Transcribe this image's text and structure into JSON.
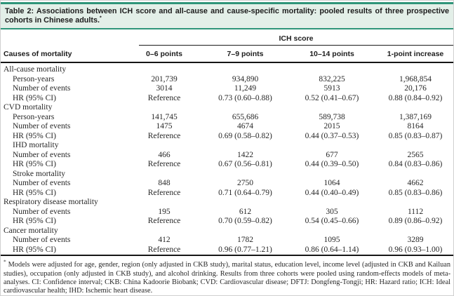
{
  "header": {
    "title": "Table 2: Associations between ICH score and all-cause and cause-specific mortality: pooled results of three prospective cohorts in Chinese adults.",
    "title_sup": "*"
  },
  "table": {
    "spanner_label": "ICH score",
    "row_header": "Causes of mortality",
    "col_headers": [
      "0–6 points",
      "7–9 points",
      "10–14 points",
      "1-point increase"
    ],
    "rows": [
      {
        "label": "All-cause mortality",
        "indent": 0,
        "values": [
          "",
          "",
          "",
          ""
        ]
      },
      {
        "label": "Person-years",
        "indent": 1,
        "values": [
          "201,739",
          "934,890",
          "832,225",
          "1,968,854"
        ]
      },
      {
        "label": "Number of events",
        "indent": 1,
        "values": [
          "3014",
          "11,249",
          "5913",
          "20,176"
        ]
      },
      {
        "label": "HR (95% CI)",
        "indent": 1,
        "values": [
          "Reference",
          "0.73 (0.60–0.88)",
          "0.52 (0.41–0.67)",
          "0.88 (0.84–0.92)"
        ]
      },
      {
        "label": "CVD mortality",
        "indent": 0,
        "values": [
          "",
          "",
          "",
          ""
        ]
      },
      {
        "label": "Person-years",
        "indent": 1,
        "values": [
          "141,745",
          "655,686",
          "589,738",
          "1,387,169"
        ]
      },
      {
        "label": "Number of events",
        "indent": 1,
        "values": [
          "1475",
          "4674",
          "2015",
          "8164"
        ]
      },
      {
        "label": "HR (95% CI)",
        "indent": 1,
        "values": [
          "Reference",
          "0.69 (0.58–0.82)",
          "0.44 (0.37–0.53)",
          "0.85 (0.83–0.87)"
        ]
      },
      {
        "label": "IHD mortality",
        "indent": 1,
        "values": [
          "",
          "",
          "",
          ""
        ]
      },
      {
        "label": "Number of events",
        "indent": 1,
        "values": [
          "466",
          "1422",
          "677",
          "2565"
        ]
      },
      {
        "label": "HR (95% CI)",
        "indent": 1,
        "values": [
          "Reference",
          "0.67 (0.56–0.81)",
          "0.44 (0.39–0.50)",
          "0.84 (0.83–0.86)"
        ]
      },
      {
        "label": "Stroke mortality",
        "indent": 1,
        "values": [
          "",
          "",
          "",
          ""
        ]
      },
      {
        "label": "Number of events",
        "indent": 1,
        "values": [
          "848",
          "2750",
          "1064",
          "4662"
        ]
      },
      {
        "label": "HR (95% CI)",
        "indent": 1,
        "values": [
          "Reference",
          "0.71 (0.64–0.79)",
          "0.44 (0.40–0.49)",
          "0.85 (0.83–0.86)"
        ]
      },
      {
        "label": "Respiratory disease mortality",
        "indent": 0,
        "values": [
          "",
          "",
          "",
          ""
        ]
      },
      {
        "label": "Number of events",
        "indent": 1,
        "values": [
          "195",
          "612",
          "305",
          "1112"
        ]
      },
      {
        "label": "HR (95% CI)",
        "indent": 1,
        "values": [
          "Reference",
          "0.70 (0.59–0.82)",
          "0.54 (0.45–0.66)",
          "0.89 (0.86–0.92)"
        ]
      },
      {
        "label": "Cancer mortality",
        "indent": 0,
        "values": [
          "",
          "",
          "",
          ""
        ]
      },
      {
        "label": "Number of events",
        "indent": 1,
        "values": [
          "412",
          "1782",
          "1095",
          "3289"
        ]
      },
      {
        "label": "HR (95% CI)",
        "indent": 1,
        "values": [
          "Reference",
          "0.96 (0.77–1.21)",
          "0.86 (0.64–1.14)",
          "0.96 (0.93–1.00)"
        ]
      }
    ]
  },
  "footnote": {
    "marker": "*",
    "text": "Models were adjusted for age, gender, region (only adjusted in CKB study), marital status, education level, income level (adjusted in CKB and Kailuan studies), occupation (only adjusted in CKB study), and alcohol drinking. Results from three cohorts were pooled using random-effects models of meta-analyses. CI: Confidence interval; CKB: China Kadoorie Biobank; CVD: Cardiovascular disease; DFTJ: Dongfeng-Tongji; HR: Hazard ratio; ICH: Ideal cardiovascular health; IHD: Ischemic heart disease."
  },
  "colors": {
    "accent_teal": "#2f9579",
    "title_bg": "#e3efe8",
    "rule_dark": "#161616"
  }
}
